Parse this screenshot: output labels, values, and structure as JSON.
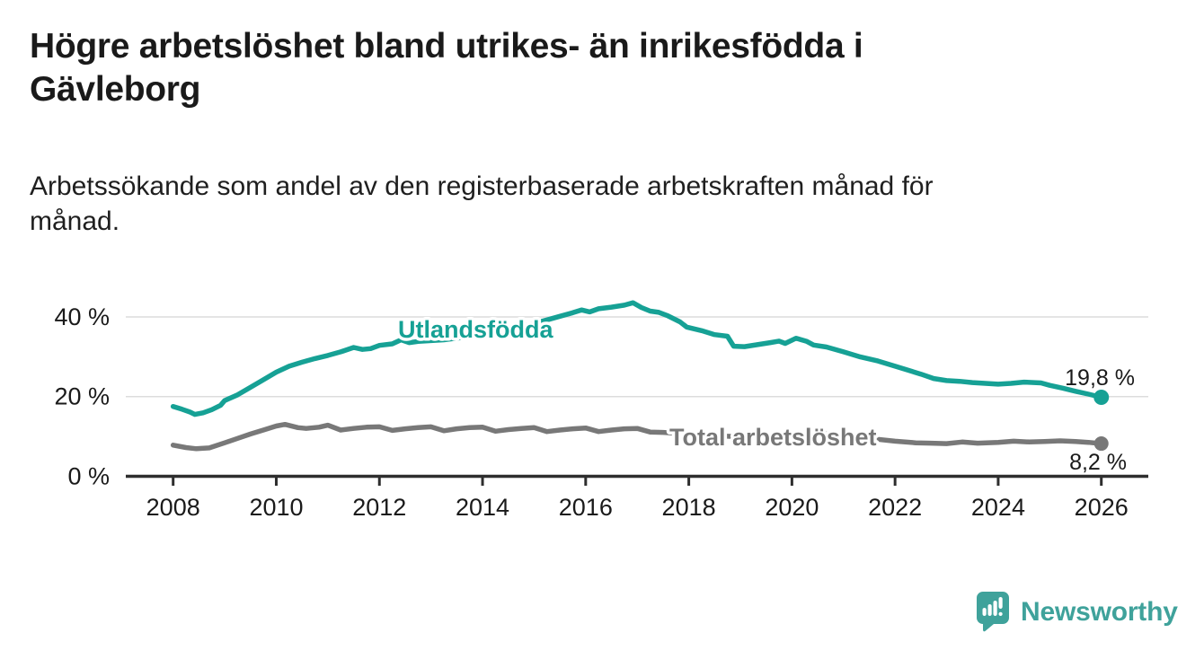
{
  "header": {
    "title_line1": "Högre arbetslöshet bland utrikes- än inrikesfödda i",
    "title_line2": "Gävleborg",
    "subtitle_line1": "Arbetssökande som andel av den registerbaserade arbetskraften månad för",
    "subtitle_line2": "månad."
  },
  "branding": {
    "logo_text": "Newsworthy",
    "logo_color": "#3fa29b"
  },
  "colors": {
    "utlandsfodda": "#16a195",
    "total": "#787878",
    "text": "#1a1a1a",
    "gridline": "#dcdcdc",
    "axis": "#2e2e2e",
    "background": "#ffffff"
  },
  "chart_data": {
    "type": "line",
    "title": "Högre arbetslöshet bland utrikes- än inrikesfödda i Gävleborg",
    "subtitle": "Arbetssökande som andel av den registerbaserade arbetskraften månad för månad.",
    "unit": "%",
    "x_axis": {
      "label": "",
      "ticks": [
        2008,
        2010,
        2012,
        2014,
        2016,
        2018,
        2020,
        2022,
        2024,
        2026
      ],
      "range": [
        2007.1,
        2026.95
      ],
      "gridlines": false
    },
    "y_axis": {
      "label": "",
      "ticks": [
        0,
        20,
        40
      ],
      "tick_labels": [
        "0 %",
        "20 %",
        "40 %"
      ],
      "range": [
        0,
        47
      ],
      "gridlines": true
    },
    "legend_position": "inline-labels",
    "series": [
      {
        "name": "Utlandsfödda",
        "color": "#16a195",
        "end_value": 19.8,
        "end_label": "19,8 %",
        "points": [
          [
            2008.0,
            17.5
          ],
          [
            2008.17,
            16.8
          ],
          [
            2008.33,
            16.1
          ],
          [
            2008.42,
            15.5
          ],
          [
            2008.58,
            15.9
          ],
          [
            2008.75,
            16.7
          ],
          [
            2008.92,
            17.8
          ],
          [
            2009.0,
            19.0
          ],
          [
            2009.25,
            20.4
          ],
          [
            2009.5,
            22.3
          ],
          [
            2009.75,
            24.2
          ],
          [
            2010.0,
            26.1
          ],
          [
            2010.25,
            27.6
          ],
          [
            2010.5,
            28.6
          ],
          [
            2010.75,
            29.5
          ],
          [
            2011.0,
            30.3
          ],
          [
            2011.25,
            31.2
          ],
          [
            2011.5,
            32.3
          ],
          [
            2011.67,
            31.8
          ],
          [
            2011.83,
            32.0
          ],
          [
            2012.0,
            32.8
          ],
          [
            2012.25,
            33.2
          ],
          [
            2012.42,
            34.2
          ],
          [
            2012.58,
            33.5
          ],
          [
            2012.75,
            33.8
          ],
          [
            2013.0,
            34.0
          ],
          [
            2013.25,
            34.2
          ],
          [
            2013.5,
            34.6
          ],
          [
            2013.75,
            35.0
          ],
          [
            2014.0,
            35.4
          ],
          [
            2014.25,
            36.0
          ],
          [
            2014.5,
            36.7
          ],
          [
            2014.75,
            37.5
          ],
          [
            2015.0,
            38.3
          ],
          [
            2015.25,
            39.2
          ],
          [
            2015.5,
            40.1
          ],
          [
            2015.75,
            41.0
          ],
          [
            2015.92,
            41.7
          ],
          [
            2016.08,
            41.2
          ],
          [
            2016.25,
            42.0
          ],
          [
            2016.5,
            42.4
          ],
          [
            2016.75,
            42.9
          ],
          [
            2016.92,
            43.5
          ],
          [
            2017.08,
            42.3
          ],
          [
            2017.25,
            41.4
          ],
          [
            2017.42,
            41.1
          ],
          [
            2017.58,
            40.3
          ],
          [
            2017.83,
            38.7
          ],
          [
            2017.96,
            37.4
          ],
          [
            2018.25,
            36.5
          ],
          [
            2018.5,
            35.5
          ],
          [
            2018.75,
            35.1
          ],
          [
            2018.87,
            32.6
          ],
          [
            2019.08,
            32.5
          ],
          [
            2019.33,
            33.0
          ],
          [
            2019.58,
            33.5
          ],
          [
            2019.75,
            33.9
          ],
          [
            2019.87,
            33.3
          ],
          [
            2020.08,
            34.6
          ],
          [
            2020.29,
            33.8
          ],
          [
            2020.42,
            32.9
          ],
          [
            2020.67,
            32.4
          ],
          [
            2021.0,
            31.2
          ],
          [
            2021.33,
            29.9
          ],
          [
            2021.67,
            28.9
          ],
          [
            2022.0,
            27.6
          ],
          [
            2022.25,
            26.6
          ],
          [
            2022.5,
            25.6
          ],
          [
            2022.75,
            24.5
          ],
          [
            2023.0,
            24.0
          ],
          [
            2023.25,
            23.8
          ],
          [
            2023.5,
            23.5
          ],
          [
            2023.75,
            23.3
          ],
          [
            2024.0,
            23.1
          ],
          [
            2024.25,
            23.3
          ],
          [
            2024.5,
            23.6
          ],
          [
            2024.83,
            23.4
          ],
          [
            2025.0,
            22.8
          ],
          [
            2025.25,
            22.1
          ],
          [
            2025.5,
            21.3
          ],
          [
            2025.75,
            20.6
          ],
          [
            2026.0,
            19.8
          ]
        ]
      },
      {
        "name": "Total arbetslöshet",
        "color": "#787878",
        "end_value": 8.2,
        "end_label": "8,2 %",
        "points": [
          [
            2008.0,
            7.8
          ],
          [
            2008.25,
            7.2
          ],
          [
            2008.45,
            6.9
          ],
          [
            2008.7,
            7.1
          ],
          [
            2009.0,
            8.4
          ],
          [
            2009.25,
            9.5
          ],
          [
            2009.5,
            10.6
          ],
          [
            2009.75,
            11.6
          ],
          [
            2010.0,
            12.6
          ],
          [
            2010.17,
            13.0
          ],
          [
            2010.42,
            12.2
          ],
          [
            2010.58,
            12.0
          ],
          [
            2010.83,
            12.3
          ],
          [
            2011.0,
            12.8
          ],
          [
            2011.25,
            11.6
          ],
          [
            2011.5,
            12.0
          ],
          [
            2011.75,
            12.3
          ],
          [
            2012.0,
            12.4
          ],
          [
            2012.25,
            11.5
          ],
          [
            2012.5,
            11.9
          ],
          [
            2012.75,
            12.2
          ],
          [
            2013.0,
            12.4
          ],
          [
            2013.25,
            11.4
          ],
          [
            2013.5,
            11.9
          ],
          [
            2013.75,
            12.2
          ],
          [
            2014.0,
            12.3
          ],
          [
            2014.25,
            11.3
          ],
          [
            2014.5,
            11.7
          ],
          [
            2014.75,
            12.0
          ],
          [
            2015.0,
            12.2
          ],
          [
            2015.25,
            11.2
          ],
          [
            2015.5,
            11.6
          ],
          [
            2015.75,
            11.9
          ],
          [
            2016.0,
            12.1
          ],
          [
            2016.25,
            11.2
          ],
          [
            2016.5,
            11.6
          ],
          [
            2016.75,
            11.9
          ],
          [
            2017.0,
            12.0
          ],
          [
            2017.25,
            11.1
          ],
          [
            2017.5,
            11.0
          ],
          [
            2017.75,
            10.8
          ],
          [
            2018.0,
            10.6
          ],
          [
            2018.5,
            10.2
          ],
          [
            2019.0,
            9.9
          ],
          [
            2019.5,
            9.7
          ],
          [
            2020.0,
            10.2
          ],
          [
            2020.3,
            11.0
          ],
          [
            2020.6,
            10.7
          ],
          [
            2021.0,
            10.2
          ],
          [
            2021.5,
            9.5
          ],
          [
            2022.0,
            8.8
          ],
          [
            2022.4,
            8.4
          ],
          [
            2022.7,
            8.3
          ],
          [
            2023.0,
            8.2
          ],
          [
            2023.3,
            8.6
          ],
          [
            2023.6,
            8.3
          ],
          [
            2024.0,
            8.5
          ],
          [
            2024.3,
            8.8
          ],
          [
            2024.6,
            8.6
          ],
          [
            2024.9,
            8.7
          ],
          [
            2025.2,
            8.9
          ],
          [
            2025.5,
            8.7
          ],
          [
            2025.75,
            8.5
          ],
          [
            2026.0,
            8.2
          ]
        ]
      }
    ]
  }
}
